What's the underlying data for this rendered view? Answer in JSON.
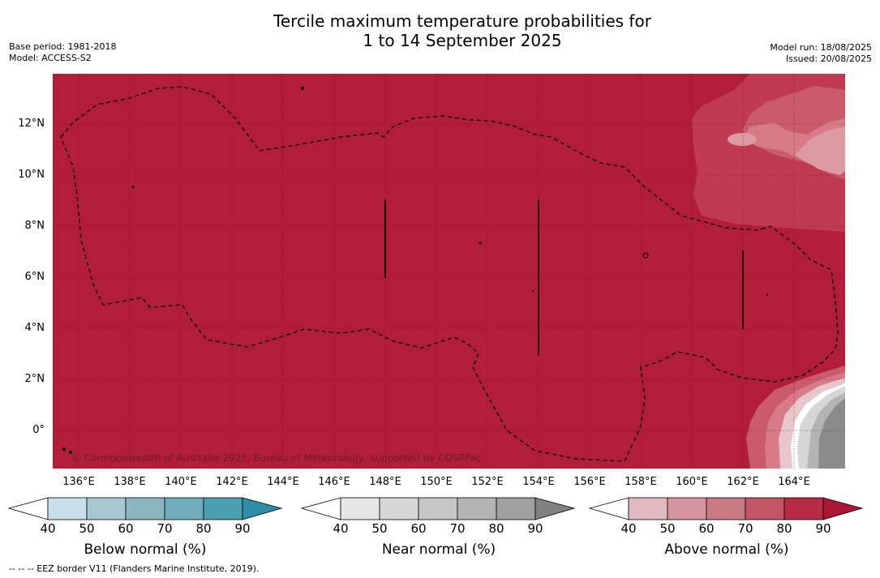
{
  "title_line1": "Tercile maximum temperature probabilities for",
  "title_line2": "1 to 14 September 2025",
  "meta_left": [
    "Base period: 1981-2018",
    "Model: ACCESS-S2"
  ],
  "meta_right": [
    "Model run: 18/08/2025",
    "Issued: 20/08/2025"
  ],
  "copyright": "© Commonwealth of Australia 2025, Bureau of Meteorology, supported by COSPPac",
  "footer": "--  --  -- EEZ border V11 (Flanders Marine Institute, 2019).",
  "map": {
    "lon_range": [
      134.8,
      165.9
    ],
    "lat_range": [
      -1.5,
      14.0
    ],
    "lat_ticks": [
      "12°N",
      "10°N",
      "8°N",
      "6°N",
      "4°N",
      "2°N",
      "0°"
    ],
    "lon_ticks": [
      "136°E",
      "138°E",
      "140°E",
      "142°E",
      "144°E",
      "146°E",
      "148°E",
      "150°E",
      "152°E",
      "154°E",
      "156°E",
      "158°E",
      "160°E",
      "162°E",
      "164°E"
    ],
    "dominant_category": "Above normal",
    "dominant_level": "80-90%",
    "background_color": "#b21e3a"
  },
  "colorbars": [
    {
      "label": "Below normal (%)",
      "ticks": [
        "40",
        "50",
        "60",
        "70",
        "80",
        "90"
      ],
      "colors": [
        "#ffffff",
        "#c8e1e8",
        "#a7c8d0",
        "#8bb7c3",
        "#6eacbb",
        "#4a9fb0",
        "#2f8ea7"
      ]
    },
    {
      "label": "Near normal (%)",
      "ticks": [
        "40",
        "50",
        "60",
        "70",
        "80",
        "90"
      ],
      "colors": [
        "#ffffff",
        "#e6e6e6",
        "#d6d6d6",
        "#c6c6c6",
        "#b4b4b4",
        "#a0a0a0",
        "#808080"
      ]
    },
    {
      "label": "Above normal (%)",
      "ticks": [
        "40",
        "50",
        "60",
        "70",
        "80",
        "90"
      ],
      "colors": [
        "#ffffff",
        "#e1b9c0",
        "#d6959e",
        "#ca7a85",
        "#c25665",
        "#b52d44",
        "#ad1535"
      ]
    }
  ]
}
